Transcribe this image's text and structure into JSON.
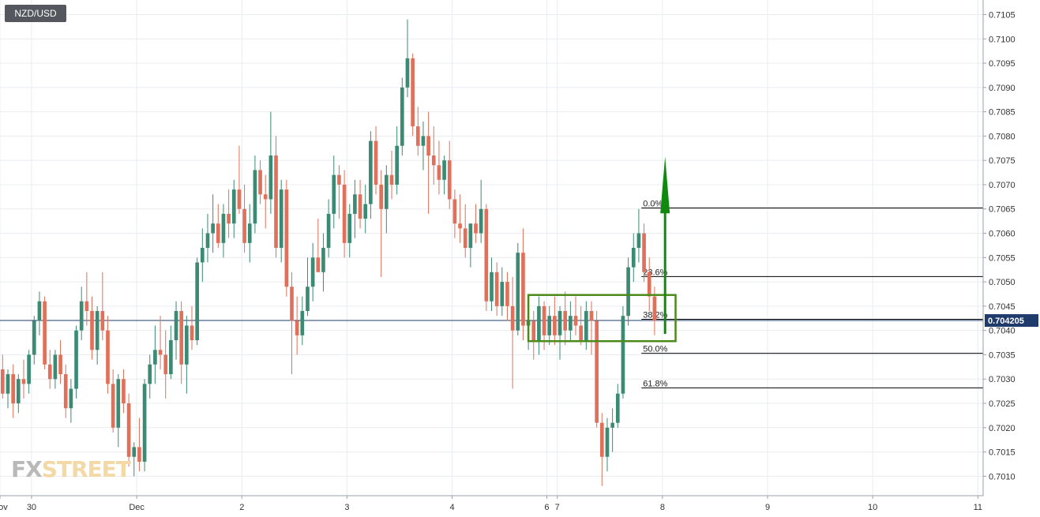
{
  "instrument": "NZD/USD",
  "logo": {
    "fx": "FX",
    "rest": "STREET"
  },
  "colors": {
    "up": "#3b8a74",
    "down": "#e0705a",
    "grid": "#e9ecf0",
    "level": "#000000",
    "arrow": "#0f8a0f",
    "box": "#4c8a1a",
    "price_tag": "#1f3b6b"
  },
  "chart_data": {
    "type": "candlestick",
    "title": "NZD/USD",
    "ylim": [
      0.7006,
      0.7108
    ],
    "y_ticks": [
      "0.7010",
      "0.7015",
      "0.7020",
      "0.7025",
      "0.7030",
      "0.7035",
      "0.7040",
      "0.7045",
      "0.7050",
      "0.7055",
      "0.7060",
      "0.7065",
      "0.7070",
      "0.7075",
      "0.7080",
      "0.7085",
      "0.7090",
      "0.7095",
      "0.7100",
      "0.7105"
    ],
    "x_range": [
      0,
      187
    ],
    "x_ticks": [
      {
        "label": "Nov",
        "x": 0
      },
      {
        "label": "30",
        "x": 6
      },
      {
        "label": "Dec",
        "x": 26
      },
      {
        "label": "2",
        "x": 46
      },
      {
        "label": "3",
        "x": 66
      },
      {
        "label": "4",
        "x": 86
      },
      {
        "label": "6",
        "x": 104
      },
      {
        "label": "7",
        "x": 106
      },
      {
        "label": "8",
        "x": 126
      },
      {
        "label": "9",
        "x": 146
      },
      {
        "label": "10",
        "x": 166
      },
      {
        "label": "11",
        "x": 186
      }
    ],
    "current_price": "0.704205",
    "current_price_value": 0.704205,
    "fibonacci": [
      {
        "label": "0.0%",
        "value": 0.70652
      },
      {
        "label": "23.6%",
        "value": 0.70511
      },
      {
        "label": "38.2%",
        "value": 0.70423
      },
      {
        "label": "50.0%",
        "value": 0.70353
      },
      {
        "label": "61.8%",
        "value": 0.70282
      }
    ],
    "fib_start_x": 122,
    "box": {
      "x0": 100.5,
      "x1": 128.5,
      "y_low": 0.70378,
      "y_high": 0.70473
    },
    "arrow": {
      "x": 126.5,
      "y_from": 0.70393,
      "y_to": 0.70758
    },
    "candles": [
      [
        0.7032,
        0.7035,
        0.7026,
        0.7027
      ],
      [
        0.7027,
        0.7032,
        0.7024,
        0.7031
      ],
      [
        0.7031,
        0.7033,
        0.7022,
        0.7025
      ],
      [
        0.7025,
        0.7031,
        0.7023,
        0.703
      ],
      [
        0.703,
        0.7034,
        0.7026,
        0.7029
      ],
      [
        0.7029,
        0.7036,
        0.7027,
        0.7035
      ],
      [
        0.7035,
        0.7043,
        0.7033,
        0.7042
      ],
      [
        0.7042,
        0.7048,
        0.7039,
        0.7046
      ],
      [
        0.7046,
        0.7047,
        0.7032,
        0.7033
      ],
      [
        0.7033,
        0.7036,
        0.7028,
        0.703
      ],
      [
        0.703,
        0.7036,
        0.7028,
        0.7035
      ],
      [
        0.7035,
        0.7038,
        0.7029,
        0.7031
      ],
      [
        0.7031,
        0.7033,
        0.7022,
        0.7024
      ],
      [
        0.7024,
        0.703,
        0.7021,
        0.7028
      ],
      [
        0.7028,
        0.7041,
        0.7026,
        0.704
      ],
      [
        0.704,
        0.7049,
        0.7038,
        0.7046
      ],
      [
        0.7046,
        0.7052,
        0.7041,
        0.7044
      ],
      [
        0.7044,
        0.7047,
        0.7034,
        0.7036
      ],
      [
        0.7036,
        0.7045,
        0.7033,
        0.7044
      ],
      [
        0.7044,
        0.7052,
        0.7038,
        0.704
      ],
      [
        0.704,
        0.7043,
        0.7027,
        0.7029
      ],
      [
        0.7029,
        0.7032,
        0.7019,
        0.702
      ],
      [
        0.702,
        0.7031,
        0.7016,
        0.703
      ],
      [
        0.703,
        0.7032,
        0.7023,
        0.7025
      ],
      [
        0.7025,
        0.7027,
        0.7012,
        0.7014
      ],
      [
        0.7014,
        0.7017,
        0.701,
        0.7016
      ],
      [
        0.7016,
        0.7022,
        0.7011,
        0.7013
      ],
      [
        0.7013,
        0.703,
        0.7011,
        0.7029
      ],
      [
        0.7029,
        0.7035,
        0.7026,
        0.7033
      ],
      [
        0.7033,
        0.7041,
        0.7029,
        0.7036
      ],
      [
        0.7036,
        0.7043,
        0.7032,
        0.7035
      ],
      [
        0.7035,
        0.704,
        0.7026,
        0.7031
      ],
      [
        0.7031,
        0.7041,
        0.703,
        0.7038
      ],
      [
        0.7038,
        0.7046,
        0.7034,
        0.7044
      ],
      [
        0.7044,
        0.7046,
        0.7029,
        0.7033
      ],
      [
        0.7033,
        0.7043,
        0.7027,
        0.7041
      ],
      [
        0.7041,
        0.7045,
        0.7036,
        0.7038
      ],
      [
        0.7038,
        0.7055,
        0.7037,
        0.7054
      ],
      [
        0.7054,
        0.7061,
        0.705,
        0.7057
      ],
      [
        0.7057,
        0.7064,
        0.7054,
        0.706
      ],
      [
        0.706,
        0.7068,
        0.7056,
        0.7062
      ],
      [
        0.7062,
        0.7066,
        0.7057,
        0.7058
      ],
      [
        0.7058,
        0.7066,
        0.7055,
        0.7064
      ],
      [
        0.7064,
        0.7069,
        0.7059,
        0.7062
      ],
      [
        0.7062,
        0.7071,
        0.7059,
        0.7069
      ],
      [
        0.7069,
        0.7078,
        0.7064,
        0.7065
      ],
      [
        0.7065,
        0.707,
        0.7056,
        0.7058
      ],
      [
        0.7058,
        0.7066,
        0.7054,
        0.7062
      ],
      [
        0.7062,
        0.7076,
        0.706,
        0.7073
      ],
      [
        0.7073,
        0.7075,
        0.7066,
        0.7068
      ],
      [
        0.7068,
        0.7072,
        0.7061,
        0.7067
      ],
      [
        0.7067,
        0.7085,
        0.7064,
        0.7076
      ],
      [
        0.7076,
        0.708,
        0.7055,
        0.7057
      ],
      [
        0.7057,
        0.7071,
        0.7054,
        0.7069
      ],
      [
        0.7069,
        0.7071,
        0.7047,
        0.7049
      ],
      [
        0.7049,
        0.7052,
        0.7031,
        0.7042
      ],
      [
        0.7042,
        0.7047,
        0.7035,
        0.7039
      ],
      [
        0.7039,
        0.7047,
        0.7037,
        0.7044
      ],
      [
        0.7044,
        0.7055,
        0.7043,
        0.7049
      ],
      [
        0.7049,
        0.7058,
        0.7046,
        0.7055
      ],
      [
        0.7055,
        0.7063,
        0.7053,
        0.7052
      ],
      [
        0.7052,
        0.706,
        0.7048,
        0.7057
      ],
      [
        0.7057,
        0.7067,
        0.7055,
        0.7064
      ],
      [
        0.7064,
        0.7076,
        0.7061,
        0.7072
      ],
      [
        0.7072,
        0.7074,
        0.7063,
        0.707
      ],
      [
        0.707,
        0.7073,
        0.7055,
        0.7058
      ],
      [
        0.7058,
        0.7066,
        0.7055,
        0.7064
      ],
      [
        0.7064,
        0.7071,
        0.7059,
        0.7068
      ],
      [
        0.7068,
        0.7071,
        0.7061,
        0.7063
      ],
      [
        0.7063,
        0.707,
        0.706,
        0.7066
      ],
      [
        0.7066,
        0.7081,
        0.7063,
        0.7079
      ],
      [
        0.7079,
        0.7082,
        0.7068,
        0.707
      ],
      [
        0.707,
        0.7073,
        0.7051,
        0.7065
      ],
      [
        0.7065,
        0.7074,
        0.706,
        0.7072
      ],
      [
        0.7072,
        0.7077,
        0.7067,
        0.707
      ],
      [
        0.707,
        0.7082,
        0.7068,
        0.7078
      ],
      [
        0.7078,
        0.7092,
        0.7076,
        0.709
      ],
      [
        0.709,
        0.7104,
        0.7088,
        0.7096
      ],
      [
        0.7096,
        0.7097,
        0.708,
        0.7082
      ],
      [
        0.7082,
        0.7086,
        0.7076,
        0.7078
      ],
      [
        0.7078,
        0.7083,
        0.7073,
        0.708
      ],
      [
        0.708,
        0.7085,
        0.7064,
        0.7076
      ],
      [
        0.7076,
        0.7082,
        0.707,
        0.7074
      ],
      [
        0.7074,
        0.7079,
        0.7068,
        0.7071
      ],
      [
        0.7071,
        0.7076,
        0.7068,
        0.7075
      ],
      [
        0.7075,
        0.7079,
        0.7065,
        0.7067
      ],
      [
        0.7067,
        0.7069,
        0.7059,
        0.7062
      ],
      [
        0.7062,
        0.7068,
        0.7058,
        0.7061
      ],
      [
        0.7061,
        0.7066,
        0.7055,
        0.7057
      ],
      [
        0.7057,
        0.7062,
        0.7053,
        0.7062
      ],
      [
        0.7062,
        0.7066,
        0.7058,
        0.706
      ],
      [
        0.706,
        0.7071,
        0.7058,
        0.7065
      ],
      [
        0.7065,
        0.7066,
        0.7044,
        0.7046
      ],
      [
        0.7046,
        0.7055,
        0.7044,
        0.7052
      ],
      [
        0.7052,
        0.7054,
        0.7043,
        0.7045
      ],
      [
        0.7045,
        0.7053,
        0.7043,
        0.705
      ],
      [
        0.705,
        0.7052,
        0.7042,
        0.7045
      ],
      [
        0.7045,
        0.7051,
        0.7028,
        0.704
      ],
      [
        0.704,
        0.7058,
        0.7039,
        0.7056
      ],
      [
        0.7056,
        0.7061,
        0.7038,
        0.7041
      ],
      [
        0.7041,
        0.7046,
        0.7036,
        0.7042
      ],
      [
        0.7042,
        0.7044,
        0.7034,
        0.7038
      ],
      [
        0.7038,
        0.7047,
        0.7035,
        0.7045
      ],
      [
        0.7045,
        0.7046,
        0.7036,
        0.7039
      ],
      [
        0.7039,
        0.7045,
        0.7037,
        0.7043
      ],
      [
        0.7043,
        0.7047,
        0.7037,
        0.7039
      ],
      [
        0.7039,
        0.7045,
        0.7034,
        0.7044
      ],
      [
        0.7044,
        0.7048,
        0.7037,
        0.704
      ],
      [
        0.704,
        0.7046,
        0.7038,
        0.7043
      ],
      [
        0.7043,
        0.7047,
        0.7039,
        0.7041
      ],
      [
        0.7041,
        0.7045,
        0.7037,
        0.7038
      ],
      [
        0.7038,
        0.7046,
        0.7036,
        0.7044
      ],
      [
        0.7044,
        0.7046,
        0.7035,
        0.7042
      ],
      [
        0.7042,
        0.7044,
        0.702,
        0.7021
      ],
      [
        0.7021,
        0.7023,
        0.7008,
        0.7014
      ],
      [
        0.7014,
        0.7022,
        0.7011,
        0.702
      ],
      [
        0.702,
        0.7024,
        0.7015,
        0.7021
      ],
      [
        0.7021,
        0.7029,
        0.702,
        0.7027
      ],
      [
        0.7027,
        0.7045,
        0.7026,
        0.7043
      ],
      [
        0.7043,
        0.7055,
        0.7041,
        0.7053
      ],
      [
        0.7053,
        0.706,
        0.705,
        0.7057
      ],
      [
        0.7057,
        0.7065,
        0.7054,
        0.706
      ],
      [
        0.706,
        0.7062,
        0.705,
        0.7052
      ],
      [
        0.7052,
        0.7055,
        0.7044,
        0.7047
      ],
      [
        0.7047,
        0.7049,
        0.7039,
        0.7042
      ]
    ]
  }
}
